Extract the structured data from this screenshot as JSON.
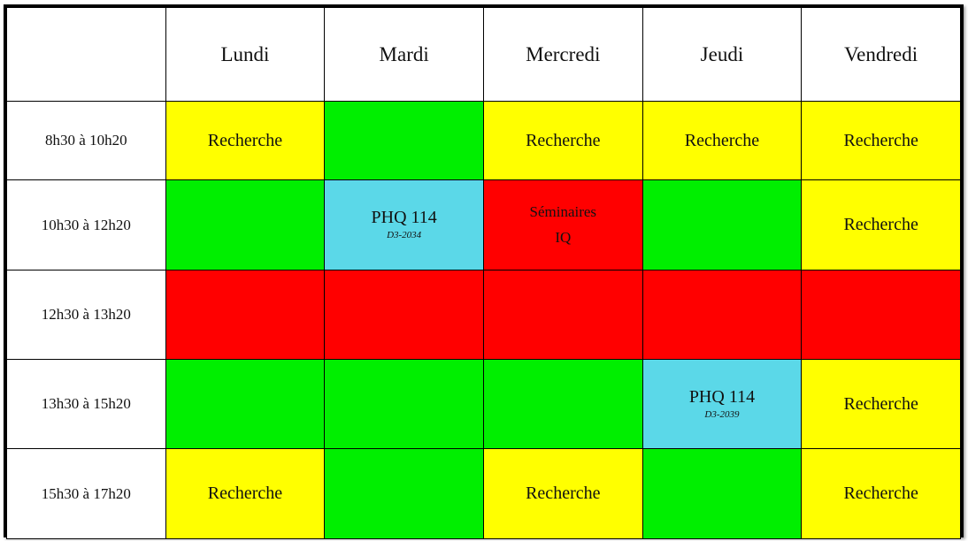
{
  "colors": {
    "recherche": "#ffff00",
    "libre": "#00ef00",
    "bloque": "#ff0000",
    "cours": "#5bd8e8"
  },
  "days": [
    "Lundi",
    "Mardi",
    "Mercredi",
    "Jeudi",
    "Vendredi"
  ],
  "times": [
    "8h30 à 10h20",
    "10h30 à 12h20",
    "12h30 à 13h20",
    "13h30 à 15h20",
    "15h30 à 17h20"
  ],
  "cells": {
    "r1": {
      "lundi": "Recherche",
      "mercredi": "Recherche",
      "jeudi": "Recherche",
      "vendredi": "Recherche"
    },
    "r2": {
      "mardi_course": "PHQ 114",
      "mardi_room": "D3-2034",
      "mercredi_line1": "Séminaires",
      "mercredi_line2": "IQ",
      "vendredi": "Recherche"
    },
    "r4": {
      "jeudi_course": "PHQ 114",
      "jeudi_room": "D3-2039",
      "vendredi": "Recherche"
    },
    "r5": {
      "lundi": "Recherche",
      "mercredi": "Recherche",
      "vendredi": "Recherche"
    }
  }
}
